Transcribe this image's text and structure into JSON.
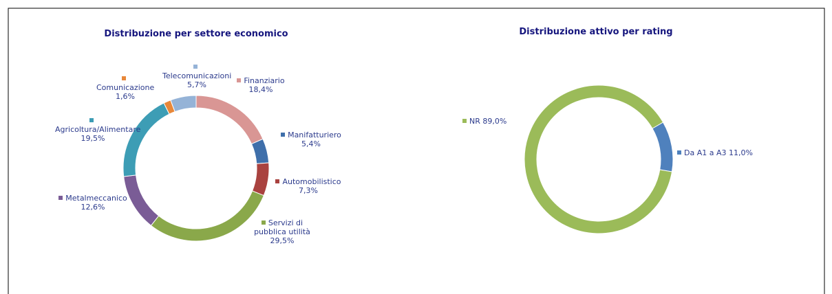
{
  "chart_data": [
    {
      "type": "donut",
      "title": "Distribuzione per settore economico",
      "categories": [
        "Finanziario",
        "Manifatturiero",
        "Automobilistico",
        "Servizi di pubblica utilità",
        "Metalmeccanico",
        "Agricoltura/Alimentare",
        "Comunicazione",
        "Telecomunicazioni"
      ],
      "values": [
        18.4,
        5.4,
        7.3,
        29.5,
        12.6,
        19.5,
        1.6,
        5.7
      ],
      "value_labels": [
        "18,4%",
        "5,4%",
        "7,3%",
        "29,5%",
        "12,6%",
        "19,5%",
        "1,6%",
        "5,7%"
      ],
      "colors": [
        "#d99694",
        "#3f6faa",
        "#a9423f",
        "#8aa84a",
        "#7a5c96",
        "#3d9db5",
        "#e8883a",
        "#95b3d7"
      ]
    },
    {
      "type": "donut",
      "title": "Distribuzione attivo per rating",
      "categories": [
        "Da A1 a A3",
        "NR"
      ],
      "values": [
        11.0,
        89.0
      ],
      "value_labels": [
        "11,0%",
        "89,0%"
      ],
      "colors": [
        "#4f81bd",
        "#9bbb59"
      ]
    }
  ]
}
